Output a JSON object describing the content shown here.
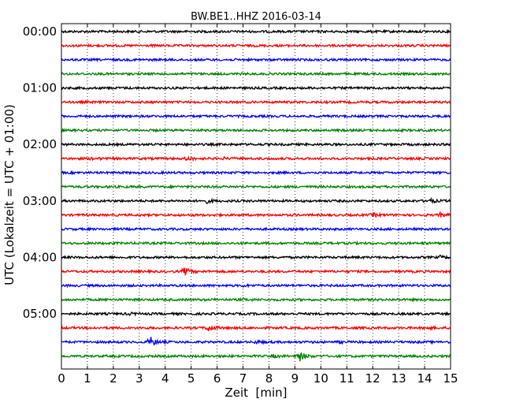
{
  "chart_data": {
    "type": "line",
    "title": "BW.BE1..HHZ 2016-03-14",
    "xlabel": "Zeit  [min]",
    "ylabel": "UTC (Lokalzeit = UTC + 01:00)",
    "xlim": [
      0,
      15
    ],
    "x_ticks": [
      "0",
      "1",
      "2",
      "3",
      "4",
      "5",
      "6",
      "7",
      "8",
      "9",
      "10",
      "11",
      "12",
      "13",
      "14",
      "15"
    ],
    "y_tick_labels": [
      "00:00",
      "01:00",
      "02:00",
      "03:00",
      "04:00",
      "05:00"
    ],
    "trace_interval_min": 15,
    "grid": true,
    "series_colors": [
      "#000000",
      "#ff0000",
      "#0000ff",
      "#008000"
    ],
    "traces": [
      {
        "start": "00:00",
        "color": "#000000",
        "events": []
      },
      {
        "start": "00:15",
        "color": "#ff0000",
        "events": []
      },
      {
        "start": "00:30",
        "color": "#0000ff",
        "events": []
      },
      {
        "start": "00:45",
        "color": "#008000",
        "events": []
      },
      {
        "start": "01:00",
        "color": "#000000",
        "events": []
      },
      {
        "start": "01:15",
        "color": "#ff0000",
        "events": []
      },
      {
        "start": "01:30",
        "color": "#0000ff",
        "events": []
      },
      {
        "start": "01:45",
        "color": "#008000",
        "events": []
      },
      {
        "start": "02:00",
        "color": "#000000",
        "events": []
      },
      {
        "start": "02:15",
        "color": "#ff0000",
        "events": [
          {
            "t": 1.2,
            "amp": 0.3
          },
          {
            "t": 4.85,
            "amp": 0.5
          },
          {
            "t": 6.25,
            "amp": 0.2
          }
        ]
      },
      {
        "start": "02:30",
        "color": "#0000ff",
        "events": []
      },
      {
        "start": "02:45",
        "color": "#008000",
        "events": []
      },
      {
        "start": "03:00",
        "color": "#000000",
        "events": [
          {
            "t": 5.6,
            "amp": 0.4
          },
          {
            "t": 14.15,
            "amp": 0.6
          }
        ]
      },
      {
        "start": "03:15",
        "color": "#ff0000",
        "events": [
          {
            "t": 12.0,
            "amp": 0.4
          },
          {
            "t": 14.6,
            "amp": 0.4
          }
        ]
      },
      {
        "start": "03:30",
        "color": "#0000ff",
        "events": []
      },
      {
        "start": "03:45",
        "color": "#008000",
        "events": []
      },
      {
        "start": "04:00",
        "color": "#000000",
        "events": [
          {
            "t": 14.6,
            "amp": 0.3
          }
        ]
      },
      {
        "start": "04:15",
        "color": "#ff0000",
        "events": [
          {
            "t": 4.75,
            "amp": 0.9
          }
        ]
      },
      {
        "start": "04:30",
        "color": "#0000ff",
        "events": [
          {
            "t": 7.0,
            "amp": 0.2
          }
        ]
      },
      {
        "start": "04:45",
        "color": "#008000",
        "events": [
          {
            "t": 7.0,
            "amp": 0.2
          }
        ]
      },
      {
        "start": "05:00",
        "color": "#000000",
        "events": [
          {
            "t": 2.6,
            "amp": 0.2
          }
        ]
      },
      {
        "start": "05:15",
        "color": "#ff0000",
        "events": [
          {
            "t": 5.65,
            "amp": 1.0
          },
          {
            "t": 14.1,
            "amp": 0.3
          }
        ]
      },
      {
        "start": "05:30",
        "color": "#0000ff",
        "events": [
          {
            "t": 3.4,
            "amp": 1.4
          },
          {
            "t": 7.5,
            "amp": 0.3
          },
          {
            "t": 10.7,
            "amp": 0.2
          }
        ]
      },
      {
        "start": "05:45",
        "color": "#008000",
        "events": [
          {
            "t": 8.15,
            "amp": 0.3
          },
          {
            "t": 9.15,
            "amp": 1.4
          }
        ]
      }
    ]
  }
}
